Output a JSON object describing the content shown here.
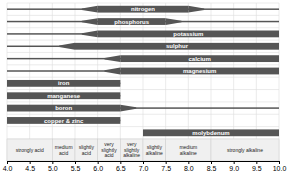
{
  "chart_data": {
    "type": "range",
    "orientation": "horizontal",
    "categories": [
      "nitrogen",
      "phosphorus",
      "potassium",
      "sulphur",
      "calcium",
      "magnesium",
      "iron",
      "manganese",
      "boron",
      "copper & zinc",
      "molybdenum"
    ],
    "values": [
      [
        6.0,
        8.0
      ],
      [
        6.0,
        7.5
      ],
      [
        6.0,
        10.0
      ],
      [
        5.5,
        10.0
      ],
      [
        6.5,
        10.0
      ],
      [
        6.5,
        10.0
      ],
      [
        4.0,
        6.5
      ],
      [
        4.0,
        6.5
      ],
      [
        4.0,
        6.5
      ],
      [
        4.0,
        6.5
      ],
      [
        7.0,
        10.0
      ]
    ],
    "extent": [
      [
        4.0,
        10.0
      ],
      [
        4.0,
        10.0
      ],
      [
        4.0,
        10.0
      ],
      [
        4.0,
        10.0
      ],
      [
        4.0,
        10.0
      ],
      [
        4.0,
        10.0
      ],
      [
        4.0,
        6.5
      ],
      [
        4.0,
        6.5
      ],
      [
        4.0,
        10.0
      ],
      [
        4.0,
        6.5
      ],
      [
        7.0,
        10.0
      ]
    ],
    "zones": [
      {
        "label": "strongly acid",
        "start": 4.0,
        "end": 5.0
      },
      {
        "label": "medium\nacid",
        "start": 5.0,
        "end": 5.5
      },
      {
        "label": "slightly\nacid",
        "start": 5.5,
        "end": 6.0
      },
      {
        "label": "very\nslightly\nacid",
        "start": 6.0,
        "end": 6.5
      },
      {
        "label": "very\nslightly\nalkaline",
        "start": 6.5,
        "end": 7.0
      },
      {
        "label": "slightly\nalkaline",
        "start": 7.0,
        "end": 7.5
      },
      {
        "label": "medium\nalkaline",
        "start": 7.5,
        "end": 8.5
      },
      {
        "label": "strongly alkaline",
        "start": 8.5,
        "end": 10.0
      }
    ],
    "xlim": [
      4.0,
      10.0
    ],
    "xticks": [
      {
        "value": 4.0,
        "label": "4.0"
      },
      {
        "value": 4.5,
        "label": "4.5"
      },
      {
        "value": 5.0,
        "label": "5.0"
      },
      {
        "value": 5.5,
        "label": "5.5"
      },
      {
        "value": 6.0,
        "label": "6.0"
      },
      {
        "value": 6.5,
        "label": "6.5"
      },
      {
        "value": 7.0,
        "label": "7.0"
      },
      {
        "value": 7.5,
        "label": "7.5"
      },
      {
        "value": 8.0,
        "label": "8.0"
      },
      {
        "value": 8.5,
        "label": "8.5"
      },
      {
        "value": 9.0,
        "label": "9.0"
      },
      {
        "value": 9.5,
        "label": "9.5"
      },
      {
        "value": 10.0,
        "label": "10.0"
      }
    ],
    "color": "#555555",
    "grid": true,
    "tick_labels": "x"
  }
}
